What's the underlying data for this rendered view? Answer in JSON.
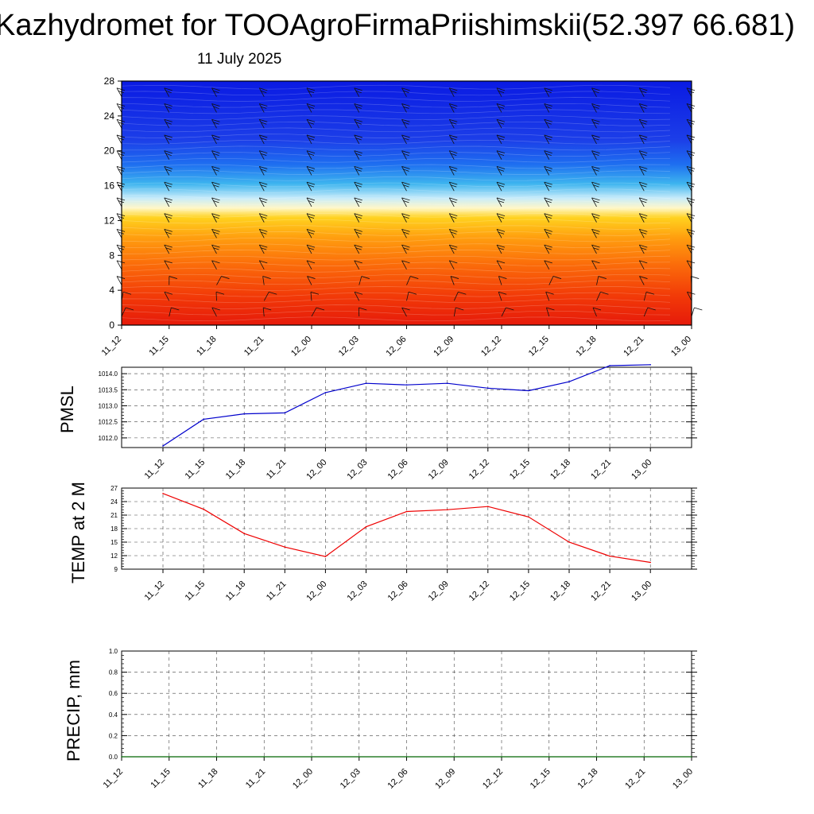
{
  "header": {
    "title": "Kazhydromet for TOOAgroFirmaPriishimskii(52.397 66.681)",
    "date": "11 July 2025"
  },
  "chart_data": [
    {
      "type": "heatmap",
      "description_free": true,
      "x": [
        "11_12",
        "11_15",
        "11_18",
        "11_21",
        "12_00",
        "12_03",
        "12_06",
        "12_09",
        "12_12",
        "12_15",
        "12_18",
        "12_21",
        "13_00"
      ],
      "y_ticks": [
        0,
        4,
        8,
        12,
        16,
        20,
        24,
        28
      ],
      "ylim": [
        0,
        28
      ],
      "colors": {
        "low": "#e8150b",
        "mid_low": "#ffb300",
        "mid": "#fffbe0",
        "mid_high": "#31a8ef",
        "high": "#0d20e6"
      },
      "wind_barbs": true
    },
    {
      "type": "line",
      "ylabel": "PMSL",
      "x": [
        "11_12",
        "11_15",
        "11_18",
        "11_21",
        "12_00",
        "12_03",
        "12_06",
        "12_09",
        "12_12",
        "12_15",
        "12_18",
        "12_21",
        "13_00"
      ],
      "values": [
        1011.75,
        1012.58,
        1012.75,
        1012.78,
        1013.41,
        1013.7,
        1013.65,
        1013.7,
        1013.55,
        1013.47,
        1013.75,
        1014.25,
        1014.28
      ],
      "y_ticks": [
        "1012.0",
        "1012.5",
        "1013.0",
        "1013.5",
        "1014.0"
      ],
      "ylim": [
        1011.7,
        1014.2
      ],
      "color": "#0000cc",
      "grid": true
    },
    {
      "type": "line",
      "ylabel": "TEMP at 2 M",
      "x": [
        "11_12",
        "11_15",
        "11_18",
        "11_21",
        "12_00",
        "12_03",
        "12_06",
        "12_09",
        "12_12",
        "12_15",
        "12_18",
        "12_21",
        "13_00"
      ],
      "values": [
        25.8,
        22.3,
        16.9,
        13.9,
        11.8,
        18.4,
        21.8,
        22.2,
        22.9,
        20.6,
        15.0,
        11.9,
        10.5
      ],
      "y_ticks": [
        9,
        12,
        15,
        18,
        21,
        24,
        27
      ],
      "ylim": [
        9,
        27
      ],
      "color": "#ee0000",
      "grid": true
    },
    {
      "type": "line",
      "ylabel": "PRECIP, mm",
      "x": [
        "11_12",
        "11_15",
        "11_18",
        "11_21",
        "12_00",
        "12_03",
        "12_06",
        "12_09",
        "12_12",
        "12_15",
        "12_18",
        "12_21",
        "13_00"
      ],
      "values": [
        0,
        0,
        0,
        0,
        0,
        0,
        0,
        0,
        0,
        0,
        0,
        0,
        0
      ],
      "y_ticks": [
        "0.0",
        "0.2",
        "0.4",
        "0.6",
        "0.8",
        "1.0"
      ],
      "ylim": [
        0,
        1
      ],
      "color": "#006600",
      "grid": true
    }
  ]
}
